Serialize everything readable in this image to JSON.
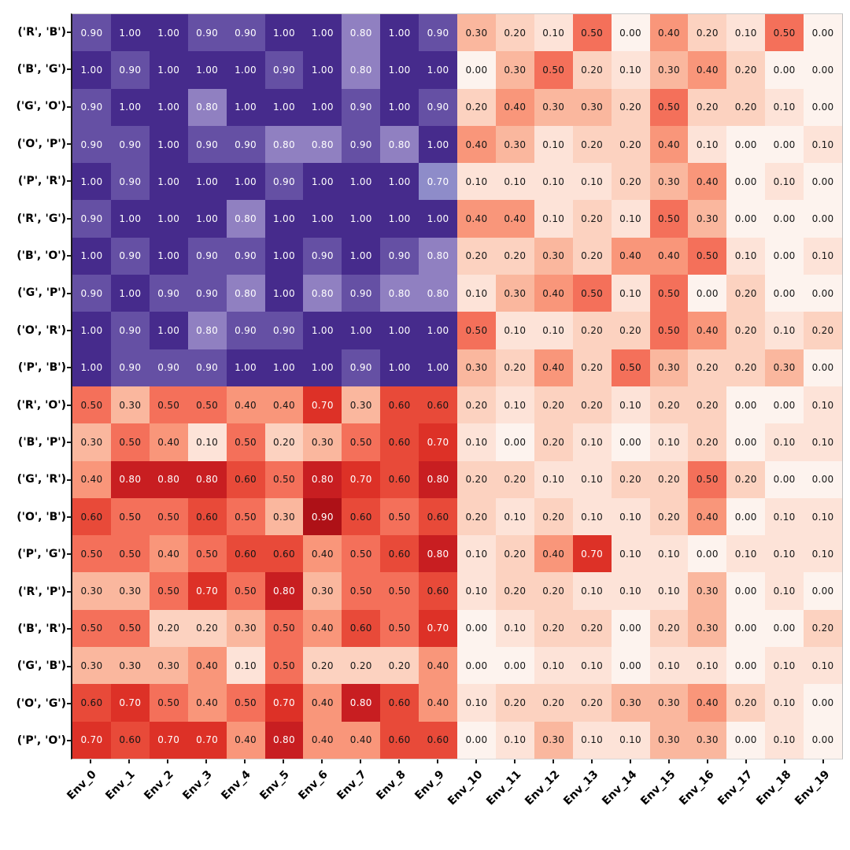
{
  "figure": {
    "background_color": "#ffffff",
    "title": ""
  },
  "chart_data": {
    "type": "heatmap",
    "title": "",
    "xlabel": "",
    "ylabel": "",
    "vmin": 0,
    "vmax": 1,
    "grid": false,
    "legend_position": "none",
    "value_format_decimals": 2,
    "x_tick_labels": [
      "Env_0",
      "Env_1",
      "Env_2",
      "Env_3",
      "Env_4",
      "Env_5",
      "Env_6",
      "Env_7",
      "Env_8",
      "Env_9",
      "Env_10",
      "Env_11",
      "Env_12",
      "Env_13",
      "Env_14",
      "Env_15",
      "Env_16",
      "Env_17",
      "Env_18",
      "Env_19"
    ],
    "y_tick_labels": [
      "('R', 'B')",
      "('B', 'G')",
      "('G', 'O')",
      "('O', 'P')",
      "('P', 'R')",
      "('R', 'G')",
      "('B', 'O')",
      "('G', 'P')",
      "('O', 'R')",
      "('P', 'B')",
      "('R', 'O')",
      "('B', 'P')",
      "('G', 'R')",
      "('O', 'B')",
      "('P', 'G')",
      "('R', 'P')",
      "('B', 'R')",
      "('G', 'B')",
      "('O', 'G')",
      "('P', 'O')"
    ],
    "values": [
      [
        0.9,
        1.0,
        1.0,
        0.9,
        0.9,
        1.0,
        1.0,
        0.8,
        1.0,
        0.9,
        0.3,
        0.2,
        0.1,
        0.5,
        0.0,
        0.4,
        0.2,
        0.1,
        0.5,
        0.0
      ],
      [
        1.0,
        0.9,
        1.0,
        1.0,
        1.0,
        0.9,
        1.0,
        0.8,
        1.0,
        1.0,
        0.0,
        0.3,
        0.5,
        0.2,
        0.1,
        0.3,
        0.4,
        0.2,
        0.0,
        0.0
      ],
      [
        0.9,
        1.0,
        1.0,
        0.8,
        1.0,
        1.0,
        1.0,
        0.9,
        1.0,
        0.9,
        0.2,
        0.4,
        0.3,
        0.3,
        0.2,
        0.5,
        0.2,
        0.2,
        0.1,
        0.0
      ],
      [
        0.9,
        0.9,
        1.0,
        0.9,
        0.9,
        0.8,
        0.8,
        0.9,
        0.8,
        1.0,
        0.4,
        0.3,
        0.1,
        0.2,
        0.2,
        0.4,
        0.1,
        0.0,
        0.0,
        0.1
      ],
      [
        1.0,
        0.9,
        1.0,
        1.0,
        1.0,
        0.9,
        1.0,
        1.0,
        1.0,
        0.7,
        0.1,
        0.1,
        0.1,
        0.1,
        0.2,
        0.3,
        0.4,
        0.0,
        0.1,
        0.0
      ],
      [
        0.9,
        1.0,
        1.0,
        1.0,
        0.8,
        1.0,
        1.0,
        1.0,
        1.0,
        1.0,
        0.4,
        0.4,
        0.1,
        0.2,
        0.1,
        0.5,
        0.3,
        0.0,
        0.0,
        0.0
      ],
      [
        1.0,
        0.9,
        1.0,
        0.9,
        0.9,
        1.0,
        0.9,
        1.0,
        0.9,
        0.8,
        0.2,
        0.2,
        0.3,
        0.2,
        0.4,
        0.4,
        0.5,
        0.1,
        0.0,
        0.1
      ],
      [
        0.9,
        1.0,
        0.9,
        0.9,
        0.8,
        1.0,
        0.8,
        0.9,
        0.8,
        0.8,
        0.1,
        0.3,
        0.4,
        0.5,
        0.1,
        0.5,
        0.0,
        0.2,
        0.0,
        0.0
      ],
      [
        1.0,
        0.9,
        1.0,
        0.8,
        0.9,
        0.9,
        1.0,
        1.0,
        1.0,
        1.0,
        0.5,
        0.1,
        0.1,
        0.2,
        0.2,
        0.5,
        0.4,
        0.2,
        0.1,
        0.2
      ],
      [
        1.0,
        0.9,
        0.9,
        0.9,
        1.0,
        1.0,
        1.0,
        0.9,
        1.0,
        1.0,
        0.3,
        0.2,
        0.4,
        0.2,
        0.5,
        0.3,
        0.2,
        0.2,
        0.3,
        0.0
      ],
      [
        0.5,
        0.3,
        0.5,
        0.5,
        0.4,
        0.4,
        0.7,
        0.3,
        0.6,
        0.6,
        0.2,
        0.1,
        0.2,
        0.2,
        0.1,
        0.2,
        0.2,
        0.0,
        0.0,
        0.1
      ],
      [
        0.3,
        0.5,
        0.4,
        0.1,
        0.5,
        0.2,
        0.3,
        0.5,
        0.6,
        0.7,
        0.1,
        0.0,
        0.2,
        0.1,
        0.0,
        0.1,
        0.2,
        0.0,
        0.1,
        0.1
      ],
      [
        0.4,
        0.8,
        0.8,
        0.8,
        0.6,
        0.5,
        0.8,
        0.7,
        0.6,
        0.8,
        0.2,
        0.2,
        0.1,
        0.1,
        0.2,
        0.2,
        0.5,
        0.2,
        0.0,
        0.0
      ],
      [
        0.6,
        0.5,
        0.5,
        0.6,
        0.5,
        0.3,
        0.9,
        0.6,
        0.5,
        0.6,
        0.2,
        0.1,
        0.2,
        0.1,
        0.1,
        0.2,
        0.4,
        0.0,
        0.1,
        0.1
      ],
      [
        0.5,
        0.5,
        0.4,
        0.5,
        0.6,
        0.6,
        0.4,
        0.5,
        0.6,
        0.8,
        0.1,
        0.2,
        0.4,
        0.7,
        0.1,
        0.1,
        0.0,
        0.1,
        0.1,
        0.1
      ],
      [
        0.3,
        0.3,
        0.5,
        0.7,
        0.5,
        0.8,
        0.3,
        0.5,
        0.5,
        0.6,
        0.1,
        0.2,
        0.2,
        0.1,
        0.1,
        0.1,
        0.3,
        0.0,
        0.1,
        0.0
      ],
      [
        0.5,
        0.5,
        0.2,
        0.2,
        0.3,
        0.5,
        0.4,
        0.6,
        0.5,
        0.7,
        0.0,
        0.1,
        0.2,
        0.2,
        0.0,
        0.2,
        0.3,
        0.0,
        0.0,
        0.2
      ],
      [
        0.3,
        0.3,
        0.3,
        0.4,
        0.1,
        0.5,
        0.2,
        0.2,
        0.2,
        0.4,
        0.0,
        0.0,
        0.1,
        0.1,
        0.0,
        0.1,
        0.1,
        0.0,
        0.1,
        0.1
      ],
      [
        0.6,
        0.7,
        0.5,
        0.4,
        0.5,
        0.7,
        0.4,
        0.8,
        0.6,
        0.4,
        0.1,
        0.2,
        0.2,
        0.2,
        0.3,
        0.3,
        0.4,
        0.2,
        0.1,
        0.0
      ],
      [
        0.7,
        0.6,
        0.7,
        0.7,
        0.4,
        0.8,
        0.4,
        0.4,
        0.6,
        0.6,
        0.0,
        0.1,
        0.3,
        0.1,
        0.1,
        0.3,
        0.3,
        0.0,
        0.1,
        0.0
      ]
    ],
    "purple_block": {
      "row_start": 0,
      "row_end": 9,
      "col_start": 0,
      "col_end": 9
    },
    "colormap_purple_stops": [
      [
        0.0,
        "#fcfbfd"
      ],
      [
        0.3,
        "#c6c5e2"
      ],
      [
        0.5,
        "#a7a3d3"
      ],
      [
        0.6,
        "#9b98cf"
      ],
      [
        0.7,
        "#8e8cc9"
      ],
      [
        0.8,
        "#9080c1"
      ],
      [
        0.9,
        "#6550a4"
      ],
      [
        1.0,
        "#462b8c"
      ]
    ],
    "colormap_red_stops": [
      [
        0.0,
        "#fdf3ee"
      ],
      [
        0.1,
        "#fde3d8"
      ],
      [
        0.2,
        "#fcd2c0"
      ],
      [
        0.3,
        "#fab79e"
      ],
      [
        0.4,
        "#f9967a"
      ],
      [
        0.5,
        "#f4705a"
      ],
      [
        0.6,
        "#e84a39"
      ],
      [
        0.7,
        "#dd3127"
      ],
      [
        0.8,
        "#c81e21"
      ],
      [
        0.9,
        "#ae1117"
      ],
      [
        1.0,
        "#8a0a12"
      ]
    ],
    "annotation_text_dark": "#151515",
    "annotation_text_light": "#ffffff",
    "white_text_threshold_red": 0.65,
    "tick_color": "#1a1a1a"
  }
}
